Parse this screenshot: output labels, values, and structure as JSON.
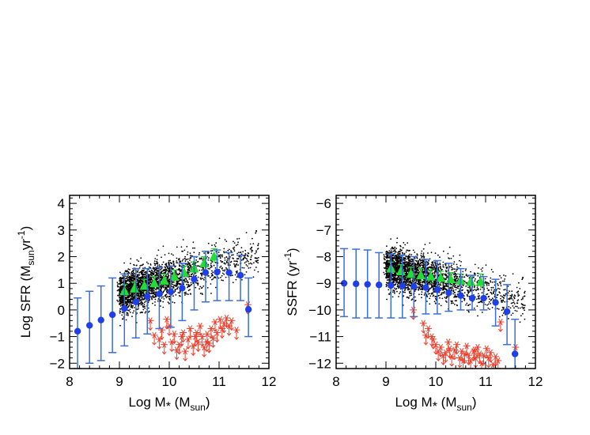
{
  "chart_data": [
    {
      "type": "scatter",
      "title": "",
      "xlabel": "Log M* (Msun)",
      "xlabel_parts": [
        "Log M",
        "*",
        " (M",
        "sun",
        ")"
      ],
      "ylabel": "Log SFR (Msunyr-1)",
      "ylabel_parts": [
        "Log SFR (M",
        "sun",
        "yr",
        "-1",
        ")"
      ],
      "xlim": [
        8,
        12
      ],
      "ylim": [
        -2.2,
        4.3
      ],
      "xticks": [
        8,
        9,
        10,
        11,
        12
      ],
      "yticks": [
        -2,
        -1,
        0,
        1,
        2,
        3,
        4
      ],
      "grid": false,
      "colors": {
        "points": "#000000",
        "median": "#1f3fe8",
        "error": "#3a6ed8",
        "red": "#ee3d2a",
        "green": "#22dd33"
      },
      "series": [
        {
          "kind": "median_with_errorbars",
          "color": "#1f3fe8",
          "x": [
            8.16,
            8.4,
            8.63,
            8.86,
            9.1,
            9.33,
            9.56,
            9.8,
            10.03,
            10.26,
            10.5,
            10.73,
            10.96,
            11.2,
            11.43,
            11.59
          ],
          "y": [
            -0.8,
            -0.58,
            -0.38,
            -0.18,
            0.05,
            0.3,
            0.5,
            0.6,
            0.68,
            0.82,
            1.15,
            1.4,
            1.42,
            1.4,
            1.3,
            0.02
          ],
          "err_low": [
            -2.2,
            -2.0,
            -1.9,
            -1.6,
            -1.35,
            -1.05,
            -0.9,
            -0.7,
            -0.65,
            -0.4,
            0.0,
            0.3,
            0.35,
            0.35,
            0.35,
            -1.0
          ],
          "err_high": [
            0.45,
            0.7,
            0.9,
            1.2,
            1.35,
            1.55,
            1.55,
            1.6,
            1.65,
            1.75,
            2.0,
            2.2,
            2.25,
            2.15,
            2.05,
            1.2
          ]
        },
        {
          "kind": "triangles_with_errorbars",
          "color": "#22dd33",
          "x": [
            9.1,
            9.3,
            9.5,
            9.7,
            9.9,
            10.1,
            10.3,
            10.5,
            10.7,
            10.9
          ],
          "y": [
            0.7,
            0.8,
            0.9,
            1.0,
            1.1,
            1.25,
            1.4,
            1.55,
            1.75,
            2.0
          ],
          "err": [
            0.25,
            0.25,
            0.25,
            0.25,
            0.25,
            0.25,
            0.25,
            0.25,
            0.25,
            0.3
          ]
        },
        {
          "kind": "asterisks_upper_limits",
          "color": "#ee3d2a",
          "x": [
            9.62,
            9.7,
            9.8,
            9.85,
            9.9,
            10.0,
            10.05,
            10.1,
            10.15,
            10.2,
            10.28,
            10.32,
            10.38,
            10.42,
            10.48,
            10.52,
            10.58,
            10.62,
            10.66,
            10.7,
            10.76,
            10.8,
            10.84,
            10.88,
            10.92,
            10.96,
            11.02,
            11.06,
            11.1,
            11.15,
            11.2,
            11.25,
            9.95,
            10.25,
            10.55,
            11.35,
            11.58,
            10.75
          ],
          "y": [
            -0.4,
            -0.95,
            -1.1,
            -0.75,
            -1.3,
            -0.6,
            -1.2,
            -0.9,
            -1.5,
            -1.3,
            -0.85,
            -1.55,
            -1.1,
            -0.7,
            -1.35,
            -1.0,
            -1.2,
            -0.6,
            -1.0,
            -1.4,
            -0.9,
            -1.25,
            -0.7,
            -1.05,
            -0.45,
            -0.85,
            -0.35,
            -0.7,
            -0.5,
            -0.3,
            -0.6,
            -0.4,
            -0.35,
            -1.0,
            -0.85,
            -0.75,
            0.2,
            -1.2
          ]
        },
        {
          "kind": "scatter_points",
          "color": "#000000",
          "generated_from": {
            "seed": 11,
            "n": 2600,
            "x_range": [
              8.9,
              11.8
            ],
            "relation": "mass_sfr"
          }
        }
      ]
    },
    {
      "type": "scatter",
      "title": "",
      "xlabel": "Log M* (Msun)",
      "xlabel_parts": [
        "Log M",
        "*",
        " (M",
        "sun",
        ")"
      ],
      "ylabel": "SSFR (yr-1)",
      "ylabel_parts": [
        "SSFR (yr",
        "-1",
        ")"
      ],
      "xlim": [
        8,
        12
      ],
      "ylim": [
        -12.2,
        -5.7
      ],
      "xticks": [
        8,
        9,
        10,
        11,
        12
      ],
      "yticks": [
        -12,
        -11,
        -10,
        -9,
        -8,
        -7,
        -6
      ],
      "grid": false,
      "colors": {
        "points": "#000000",
        "median": "#1f3fe8",
        "error": "#3a6ed8",
        "red": "#ee3d2a",
        "green": "#22dd33"
      },
      "series": [
        {
          "kind": "median_with_errorbars",
          "color": "#1f3fe8",
          "x": [
            8.16,
            8.4,
            8.63,
            8.86,
            9.1,
            9.33,
            9.56,
            9.8,
            10.03,
            10.26,
            10.5,
            10.73,
            10.96,
            11.2,
            11.43,
            11.59
          ],
          "y": [
            -9.0,
            -9.02,
            -9.04,
            -9.06,
            -9.08,
            -9.1,
            -9.12,
            -9.16,
            -9.24,
            -9.36,
            -9.46,
            -9.56,
            -9.56,
            -9.72,
            -10.06,
            -11.65
          ],
          "err_low": [
            -10.25,
            -10.3,
            -10.3,
            -10.3,
            -10.3,
            -10.3,
            -10.25,
            -10.15,
            -10.15,
            -10.05,
            -10.0,
            -10.0,
            -10.0,
            -10.6,
            -11.3,
            -12.2
          ],
          "err_high": [
            -7.7,
            -7.72,
            -7.75,
            -7.85,
            -7.9,
            -7.95,
            -8.0,
            -8.1,
            -8.15,
            -8.25,
            -8.45,
            -8.7,
            -8.75,
            -8.85,
            -9.05,
            -10.35
          ]
        },
        {
          "kind": "triangles_with_errorbars",
          "color": "#22dd33",
          "x": [
            9.1,
            9.3,
            9.5,
            9.7,
            9.9,
            10.1,
            10.3,
            10.5,
            10.7,
            10.9
          ],
          "y": [
            -8.45,
            -8.55,
            -8.65,
            -8.7,
            -8.75,
            -8.8,
            -8.85,
            -8.9,
            -8.95,
            -8.95
          ],
          "err": [
            0.25,
            0.25,
            0.25,
            0.25,
            0.25,
            0.25,
            0.25,
            0.25,
            0.25,
            0.3
          ]
        },
        {
          "kind": "asterisks_upper_limits",
          "color": "#ee3d2a",
          "x": [
            9.55,
            9.75,
            9.8,
            9.85,
            9.95,
            10.0,
            10.05,
            10.1,
            10.15,
            10.2,
            10.28,
            10.32,
            10.38,
            10.42,
            10.48,
            10.52,
            10.58,
            10.62,
            10.66,
            10.7,
            10.76,
            10.8,
            10.84,
            10.88,
            10.92,
            10.96,
            11.02,
            11.06,
            11.1,
            11.15,
            11.2,
            11.25,
            11.3,
            11.6,
            9.92,
            10.25,
            10.55,
            10.78
          ],
          "y": [
            -10.0,
            -10.5,
            -10.95,
            -10.7,
            -11.1,
            -11.3,
            -11.55,
            -11.4,
            -11.7,
            -11.6,
            -11.45,
            -11.75,
            -11.5,
            -11.3,
            -11.8,
            -11.55,
            -11.65,
            -11.35,
            -11.7,
            -11.9,
            -11.55,
            -11.8,
            -11.4,
            -11.65,
            -12.0,
            -11.7,
            -11.45,
            -11.8,
            -11.6,
            -12.05,
            -11.75,
            -11.9,
            -10.45,
            -11.4,
            -11.0,
            -11.2,
            -11.9,
            -11.5
          ]
        },
        {
          "kind": "scatter_points",
          "color": "#000000",
          "generated_from": {
            "seed": 11,
            "n": 2600,
            "x_range": [
              8.9,
              11.8
            ],
            "relation": "mass_ssfr"
          }
        }
      ]
    }
  ]
}
